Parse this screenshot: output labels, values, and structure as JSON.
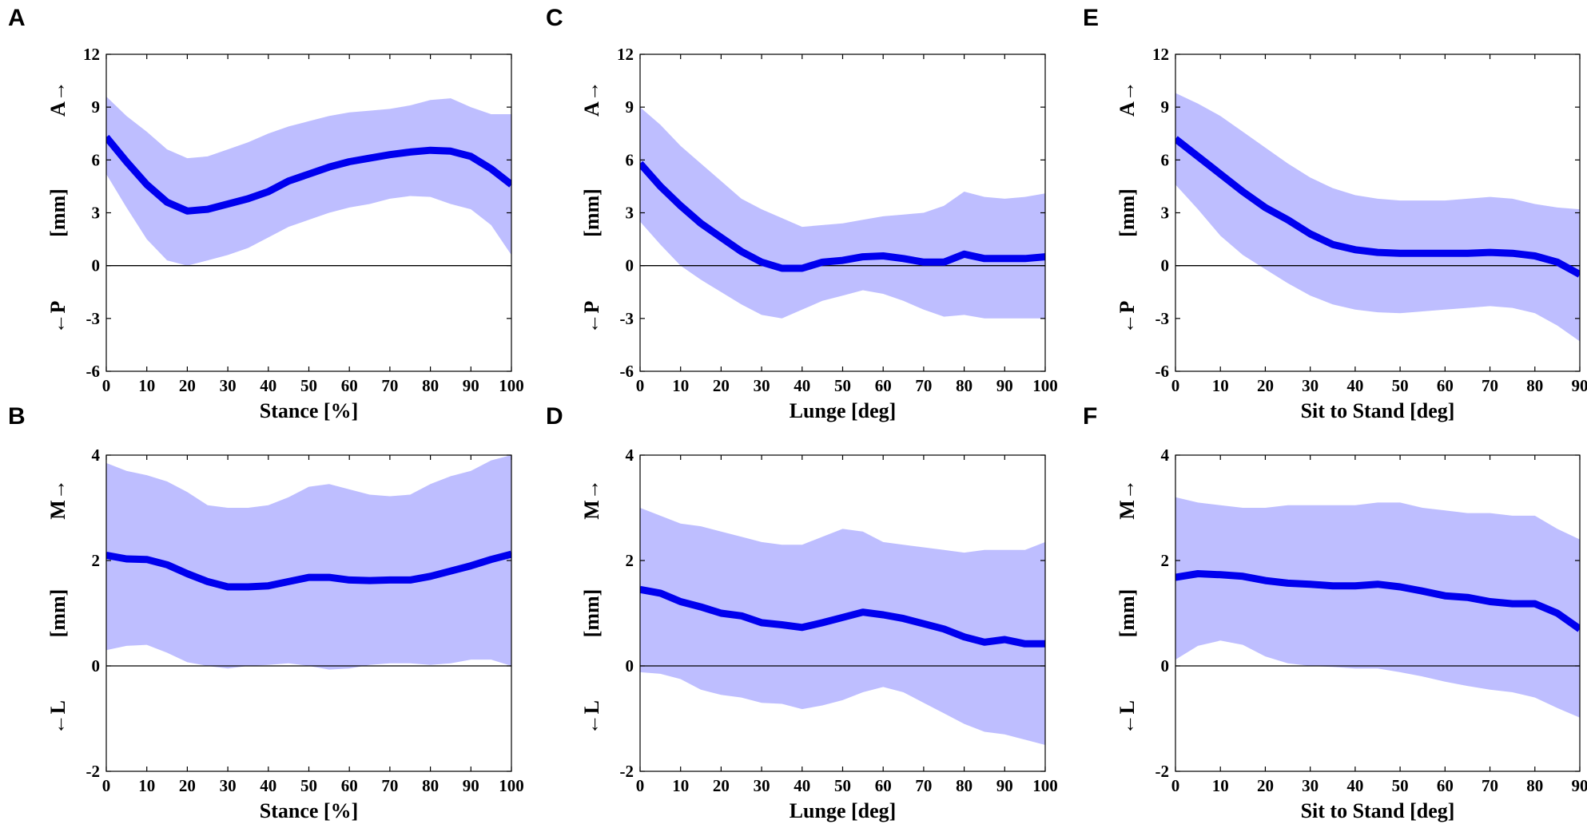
{
  "chart_data": [
    {
      "panel": "A",
      "type": "line",
      "xlabel": "Stance [%]",
      "ylabel": "[mm]",
      "pos_label": "A→",
      "neg_label": "←P",
      "xlim": [
        0,
        100
      ],
      "ylim": [
        -6,
        12
      ],
      "xticks": [
        0,
        10,
        20,
        30,
        40,
        50,
        60,
        70,
        80,
        90,
        100
      ],
      "yticks": [
        -6,
        -3,
        0,
        3,
        6,
        9,
        12
      ],
      "x": [
        0,
        5,
        10,
        15,
        20,
        25,
        30,
        35,
        40,
        45,
        50,
        55,
        60,
        65,
        70,
        75,
        80,
        85,
        90,
        95,
        100
      ],
      "mean": [
        7.3,
        5.9,
        4.6,
        3.6,
        3.1,
        3.2,
        3.5,
        3.8,
        4.2,
        4.8,
        5.2,
        5.6,
        5.9,
        6.1,
        6.3,
        6.45,
        6.55,
        6.5,
        6.2,
        5.5,
        4.6
      ],
      "upper": [
        9.6,
        8.5,
        7.6,
        6.6,
        6.1,
        6.2,
        6.6,
        7.0,
        7.5,
        7.9,
        8.2,
        8.5,
        8.7,
        8.8,
        8.9,
        9.1,
        9.4,
        9.5,
        9.0,
        8.6,
        8.6
      ],
      "lower": [
        5.2,
        3.3,
        1.5,
        0.3,
        0.0,
        0.3,
        0.6,
        1.0,
        1.6,
        2.2,
        2.6,
        3.0,
        3.3,
        3.5,
        3.8,
        3.95,
        3.9,
        3.5,
        3.2,
        2.3,
        0.6
      ]
    },
    {
      "panel": "B",
      "type": "line",
      "xlabel": "Stance [%]",
      "ylabel": "[mm]",
      "pos_label": "M→",
      "neg_label": "←L",
      "xlim": [
        0,
        100
      ],
      "ylim": [
        -2,
        4
      ],
      "xticks": [
        0,
        10,
        20,
        30,
        40,
        50,
        60,
        70,
        80,
        90,
        100
      ],
      "yticks": [
        -2,
        0,
        2,
        4
      ],
      "x": [
        0,
        5,
        10,
        15,
        20,
        25,
        30,
        35,
        40,
        45,
        50,
        55,
        60,
        65,
        70,
        75,
        80,
        85,
        90,
        95,
        100
      ],
      "mean": [
        2.1,
        2.03,
        2.02,
        1.92,
        1.75,
        1.6,
        1.5,
        1.5,
        1.52,
        1.6,
        1.68,
        1.68,
        1.63,
        1.62,
        1.63,
        1.63,
        1.7,
        1.8,
        1.9,
        2.02,
        2.12
      ],
      "upper": [
        3.85,
        3.7,
        3.62,
        3.5,
        3.3,
        3.05,
        3.0,
        3.0,
        3.05,
        3.2,
        3.4,
        3.45,
        3.35,
        3.25,
        3.22,
        3.25,
        3.45,
        3.6,
        3.7,
        3.9,
        4.0
      ],
      "lower": [
        0.3,
        0.38,
        0.4,
        0.25,
        0.07,
        0.0,
        -0.05,
        0.0,
        0.02,
        0.05,
        0.0,
        -0.07,
        -0.05,
        0.02,
        0.05,
        0.05,
        0.02,
        0.05,
        0.12,
        0.12,
        0.0
      ]
    },
    {
      "panel": "C",
      "type": "line",
      "xlabel": "Lunge [deg]",
      "ylabel": "[mm]",
      "pos_label": "A→",
      "neg_label": "←P",
      "xlim": [
        0,
        100
      ],
      "ylim": [
        -6,
        12
      ],
      "xticks": [
        0,
        10,
        20,
        30,
        40,
        50,
        60,
        70,
        80,
        90,
        100
      ],
      "yticks": [
        -6,
        -3,
        0,
        3,
        6,
        9,
        12
      ],
      "x": [
        0,
        5,
        10,
        15,
        20,
        25,
        30,
        35,
        40,
        45,
        50,
        55,
        60,
        65,
        70,
        75,
        80,
        85,
        90,
        95,
        100
      ],
      "mean": [
        5.8,
        4.5,
        3.4,
        2.4,
        1.6,
        0.8,
        0.2,
        -0.15,
        -0.15,
        0.2,
        0.3,
        0.5,
        0.55,
        0.4,
        0.2,
        0.2,
        0.65,
        0.4,
        0.4,
        0.4,
        0.5
      ],
      "upper": [
        9.0,
        8.0,
        6.8,
        5.8,
        4.8,
        3.8,
        3.2,
        2.7,
        2.2,
        2.3,
        2.4,
        2.6,
        2.8,
        2.9,
        3.0,
        3.4,
        4.2,
        3.9,
        3.8,
        3.9,
        4.1
      ],
      "lower": [
        2.5,
        1.2,
        0.0,
        -0.8,
        -1.5,
        -2.2,
        -2.8,
        -3.0,
        -2.5,
        -2.0,
        -1.7,
        -1.4,
        -1.6,
        -2.0,
        -2.5,
        -2.9,
        -2.8,
        -3.0,
        -3.0,
        -3.0,
        -3.0
      ]
    },
    {
      "panel": "D",
      "type": "line",
      "xlabel": "Lunge [deg]",
      "ylabel": "[mm]",
      "pos_label": "M→",
      "neg_label": "←L",
      "xlim": [
        0,
        100
      ],
      "ylim": [
        -2,
        4
      ],
      "xticks": [
        0,
        10,
        20,
        30,
        40,
        50,
        60,
        70,
        80,
        90,
        100
      ],
      "yticks": [
        -2,
        0,
        2,
        4
      ],
      "x": [
        0,
        5,
        10,
        15,
        20,
        25,
        30,
        35,
        40,
        45,
        50,
        55,
        60,
        65,
        70,
        75,
        80,
        85,
        90,
        95,
        100
      ],
      "mean": [
        1.45,
        1.38,
        1.22,
        1.12,
        1.0,
        0.95,
        0.82,
        0.78,
        0.73,
        0.82,
        0.92,
        1.02,
        0.97,
        0.9,
        0.8,
        0.7,
        0.55,
        0.45,
        0.5,
        0.42,
        0.42
      ],
      "upper": [
        3.0,
        2.85,
        2.7,
        2.65,
        2.55,
        2.45,
        2.35,
        2.3,
        2.3,
        2.45,
        2.6,
        2.55,
        2.35,
        2.3,
        2.25,
        2.2,
        2.15,
        2.2,
        2.2,
        2.2,
        2.35
      ],
      "lower": [
        -0.12,
        -0.15,
        -0.25,
        -0.45,
        -0.55,
        -0.6,
        -0.7,
        -0.72,
        -0.82,
        -0.75,
        -0.65,
        -0.5,
        -0.4,
        -0.5,
        -0.7,
        -0.9,
        -1.1,
        -1.25,
        -1.3,
        -1.4,
        -1.5
      ]
    },
    {
      "panel": "E",
      "type": "line",
      "xlabel": "Sit to Stand [deg]",
      "ylabel": "[mm]",
      "pos_label": "A→",
      "neg_label": "←P",
      "xlim": [
        0,
        90
      ],
      "ylim": [
        -6,
        12
      ],
      "xticks": [
        0,
        10,
        20,
        30,
        40,
        50,
        60,
        70,
        80,
        90
      ],
      "yticks": [
        -6,
        -3,
        0,
        3,
        6,
        9,
        12
      ],
      "x": [
        0,
        5,
        10,
        15,
        20,
        25,
        30,
        35,
        40,
        45,
        50,
        55,
        60,
        65,
        70,
        75,
        80,
        85,
        90
      ],
      "mean": [
        7.2,
        6.2,
        5.2,
        4.2,
        3.3,
        2.6,
        1.8,
        1.2,
        0.9,
        0.75,
        0.7,
        0.7,
        0.7,
        0.7,
        0.75,
        0.7,
        0.55,
        0.2,
        -0.5
      ],
      "upper": [
        9.8,
        9.2,
        8.5,
        7.6,
        6.7,
        5.8,
        5.0,
        4.4,
        4.0,
        3.8,
        3.7,
        3.7,
        3.7,
        3.8,
        3.9,
        3.8,
        3.5,
        3.3,
        3.2
      ],
      "lower": [
        4.6,
        3.2,
        1.7,
        0.6,
        -0.2,
        -1.0,
        -1.7,
        -2.2,
        -2.5,
        -2.65,
        -2.7,
        -2.6,
        -2.5,
        -2.4,
        -2.3,
        -2.4,
        -2.7,
        -3.4,
        -4.3
      ]
    },
    {
      "panel": "F",
      "type": "line",
      "xlabel": "Sit to Stand [deg]",
      "ylabel": "[mm]",
      "pos_label": "M→",
      "neg_label": "←L",
      "xlim": [
        0,
        90
      ],
      "ylim": [
        -2,
        4
      ],
      "xticks": [
        0,
        10,
        20,
        30,
        40,
        50,
        60,
        70,
        80,
        90
      ],
      "yticks": [
        -2,
        0,
        2,
        4
      ],
      "x": [
        0,
        5,
        10,
        15,
        20,
        25,
        30,
        35,
        40,
        45,
        50,
        55,
        60,
        65,
        70,
        75,
        80,
        85,
        90
      ],
      "mean": [
        1.68,
        1.75,
        1.73,
        1.7,
        1.62,
        1.57,
        1.55,
        1.52,
        1.52,
        1.55,
        1.5,
        1.42,
        1.33,
        1.3,
        1.22,
        1.18,
        1.18,
        1.0,
        0.7
      ],
      "upper": [
        3.2,
        3.1,
        3.05,
        3.0,
        3.0,
        3.05,
        3.05,
        3.05,
        3.05,
        3.1,
        3.1,
        3.0,
        2.95,
        2.9,
        2.9,
        2.85,
        2.85,
        2.6,
        2.4
      ],
      "lower": [
        0.12,
        0.38,
        0.48,
        0.4,
        0.18,
        0.05,
        0.0,
        -0.02,
        -0.05,
        -0.05,
        -0.12,
        -0.2,
        -0.3,
        -0.38,
        -0.45,
        -0.5,
        -0.6,
        -0.8,
        -0.98
      ]
    }
  ],
  "style": {
    "mean_color": "#0000ee",
    "band_color": "#bebeff",
    "zero_line_color": "#000000"
  }
}
